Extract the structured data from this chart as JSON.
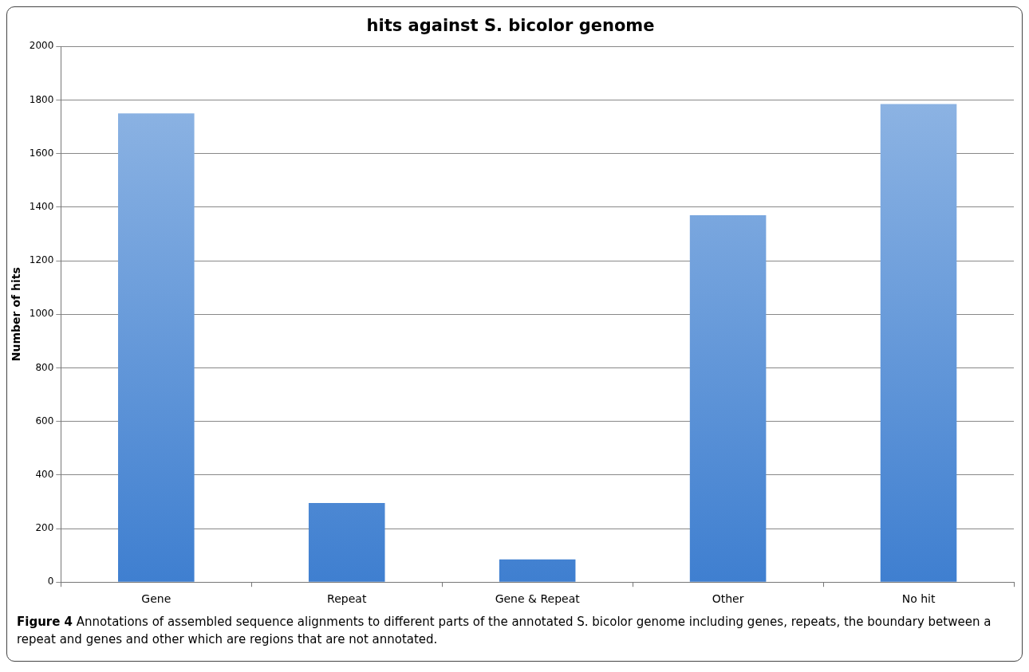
{
  "chart_data": {
    "type": "bar",
    "title": "hits against S. bicolor genome",
    "ylabel": "Number of hits",
    "categories": [
      "Gene",
      "Repeat",
      "Gene & Repeat",
      "Other",
      "No hit"
    ],
    "values": [
      1750,
      295,
      85,
      1370,
      1785
    ],
    "color": "#3f7fd0",
    "ylim": [
      0,
      2000
    ],
    "yticks": [
      0,
      200,
      400,
      600,
      800,
      1000,
      1200,
      1400,
      1600,
      1800,
      2000
    ],
    "grid": "y",
    "annotations": [
      "Figure 4 Annotations of assembled sequence alignments to different parts of the annotated S. bicolor genome including genes, repeats, the boundary between a repeat and genes and other which are regions that are not annotated."
    ]
  }
}
